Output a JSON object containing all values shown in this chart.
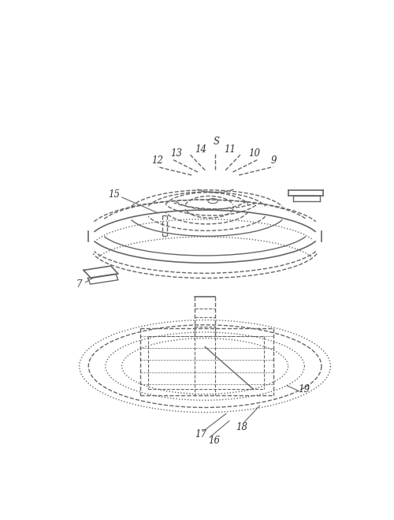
{
  "fig_width": 5.0,
  "fig_height": 6.59,
  "dpi": 100,
  "bg_color": "#ffffff",
  "line_color": "#666666",
  "label_color": "#333333",
  "font_size": 8.5
}
